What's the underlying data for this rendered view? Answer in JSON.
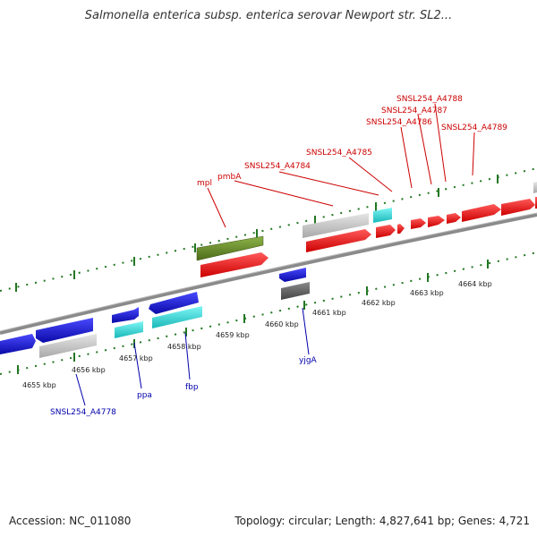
{
  "title": "Salmonella enterica subsp. enterica serovar Newport str. SL2...",
  "footer": {
    "accession_label": "Accession:",
    "accession": "NC_011080",
    "topology_label": "Topology:",
    "topology": "circular",
    "length_label": "Length:",
    "length": "4,827,641 bp",
    "genes_label": "Genes:",
    "genes": "4,721"
  },
  "colors": {
    "forward_red": "#ee1111",
    "reverse_blue": "#1515dd",
    "rna_cyan": "#22dddd",
    "pseudo_gray": "#c8c8c8",
    "dark_gray": "#666666",
    "olive": "#6b8e23",
    "label_red": "#cc0000",
    "label_blue": "#0000aa",
    "tick_green": "#227722",
    "backbone": "#888888"
  },
  "scale_labels": [
    "4655 kbp",
    "4656 kbp",
    "4657 kbp",
    "4658 kbp",
    "4659 kbp",
    "4660 kbp",
    "4661 kbp",
    "4662 kbp",
    "4663 kbp",
    "4664 kbp"
  ],
  "top_labels": [
    "mpl",
    "pmbA",
    "SNSL254_A4784",
    "SNSL254_A4785",
    "SNSL254_A4786",
    "SNSL254_A4787",
    "SNSL254_A4788",
    "SNSL254_A4789"
  ],
  "bottom_labels": [
    "SNSL254_A4778",
    "ppa",
    "fbp",
    "yjgA"
  ]
}
